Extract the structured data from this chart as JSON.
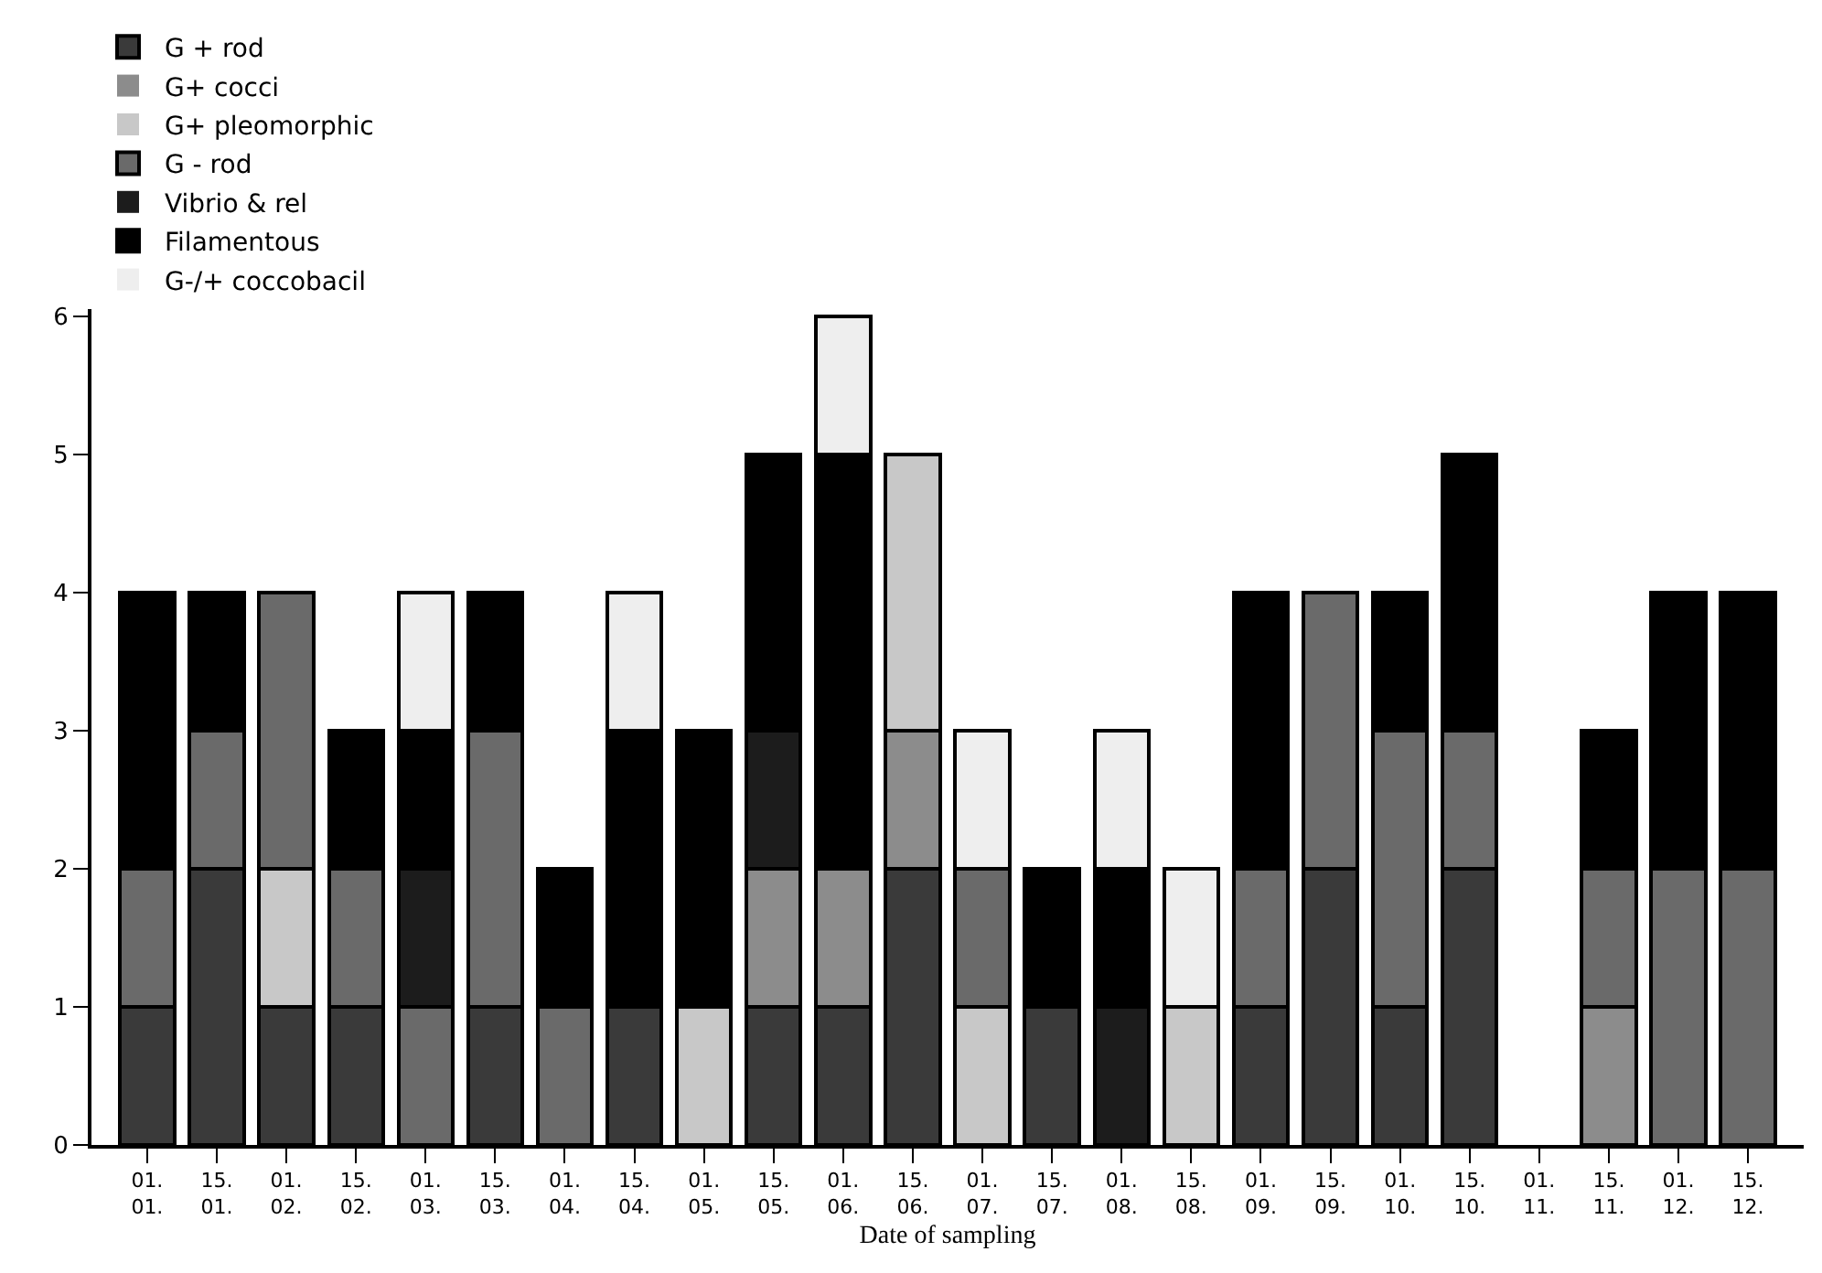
{
  "chart_data": {
    "type": "bar",
    "stacked": true,
    "xlabel": "Date of sampling",
    "categories": [
      "01.\n01.",
      "15.\n01.",
      "01.\n02.",
      "15.\n02.",
      "01.\n03.",
      "15.\n03.",
      "01.\n04.",
      "15.\n04.",
      "01.\n05.",
      "15.\n05.",
      "01.\n06.",
      "15.\n06.",
      "01.\n07.",
      "15.\n07.",
      "01.\n08.",
      "15.\n08.",
      "01.\n09.",
      "15.\n09.",
      "01.\n10.",
      "15.\n10.",
      "01.\n11.",
      "15.\n11.",
      "01.\n12.",
      "15.\n12."
    ],
    "series": [
      {
        "name": "G + rod",
        "color": "#3a3a3a",
        "values": [
          1,
          2,
          1,
          1,
          0,
          1,
          0,
          1,
          0,
          1,
          1,
          2,
          0,
          1,
          0,
          0,
          1,
          2,
          1,
          2,
          0,
          0,
          0,
          0
        ]
      },
      {
        "name": "G+ cocci",
        "color": "#8c8c8c",
        "values": [
          0,
          0,
          0,
          0,
          0,
          0,
          0,
          0,
          0,
          1,
          1,
          1,
          0,
          0,
          0,
          0,
          0,
          0,
          0,
          0,
          0,
          1,
          0,
          0
        ]
      },
      {
        "name": "G+ pleomorphic",
        "color": "#c8c8c8",
        "values": [
          0,
          0,
          1,
          0,
          0,
          0,
          0,
          0,
          1,
          0,
          0,
          2,
          1,
          0,
          0,
          1,
          0,
          0,
          0,
          0,
          0,
          0,
          0,
          0
        ]
      },
      {
        "name": "G - rod",
        "color": "#6a6a6a",
        "values": [
          1,
          1,
          2,
          1,
          1,
          2,
          1,
          0,
          0,
          0,
          0,
          0,
          1,
          0,
          0,
          0,
          1,
          2,
          2,
          1,
          0,
          1,
          2,
          2
        ]
      },
      {
        "name": "Vibrio & rel",
        "color": "#1c1c1c",
        "values": [
          0,
          0,
          0,
          0,
          1,
          0,
          0,
          0,
          0,
          1,
          0,
          0,
          0,
          0,
          1,
          0,
          0,
          0,
          0,
          0,
          0,
          0,
          0,
          0
        ]
      },
      {
        "name": "Filamentous",
        "color": "#000000",
        "values": [
          2,
          1,
          0,
          1,
          1,
          1,
          1,
          2,
          2,
          2,
          3,
          0,
          0,
          1,
          1,
          0,
          2,
          0,
          1,
          2,
          0,
          1,
          2,
          2
        ]
      },
      {
        "name": "G-/+ coccobacil",
        "color": "#eeeeee",
        "values": [
          0,
          0,
          0,
          0,
          1,
          0,
          0,
          1,
          0,
          0,
          1,
          0,
          1,
          0,
          1,
          1,
          0,
          0,
          0,
          0,
          0,
          0,
          0,
          0
        ]
      }
    ],
    "ylim": [
      0,
      6.05
    ],
    "yticks": [
      0,
      1,
      2,
      3,
      4,
      5,
      6
    ],
    "legend": "top left"
  }
}
